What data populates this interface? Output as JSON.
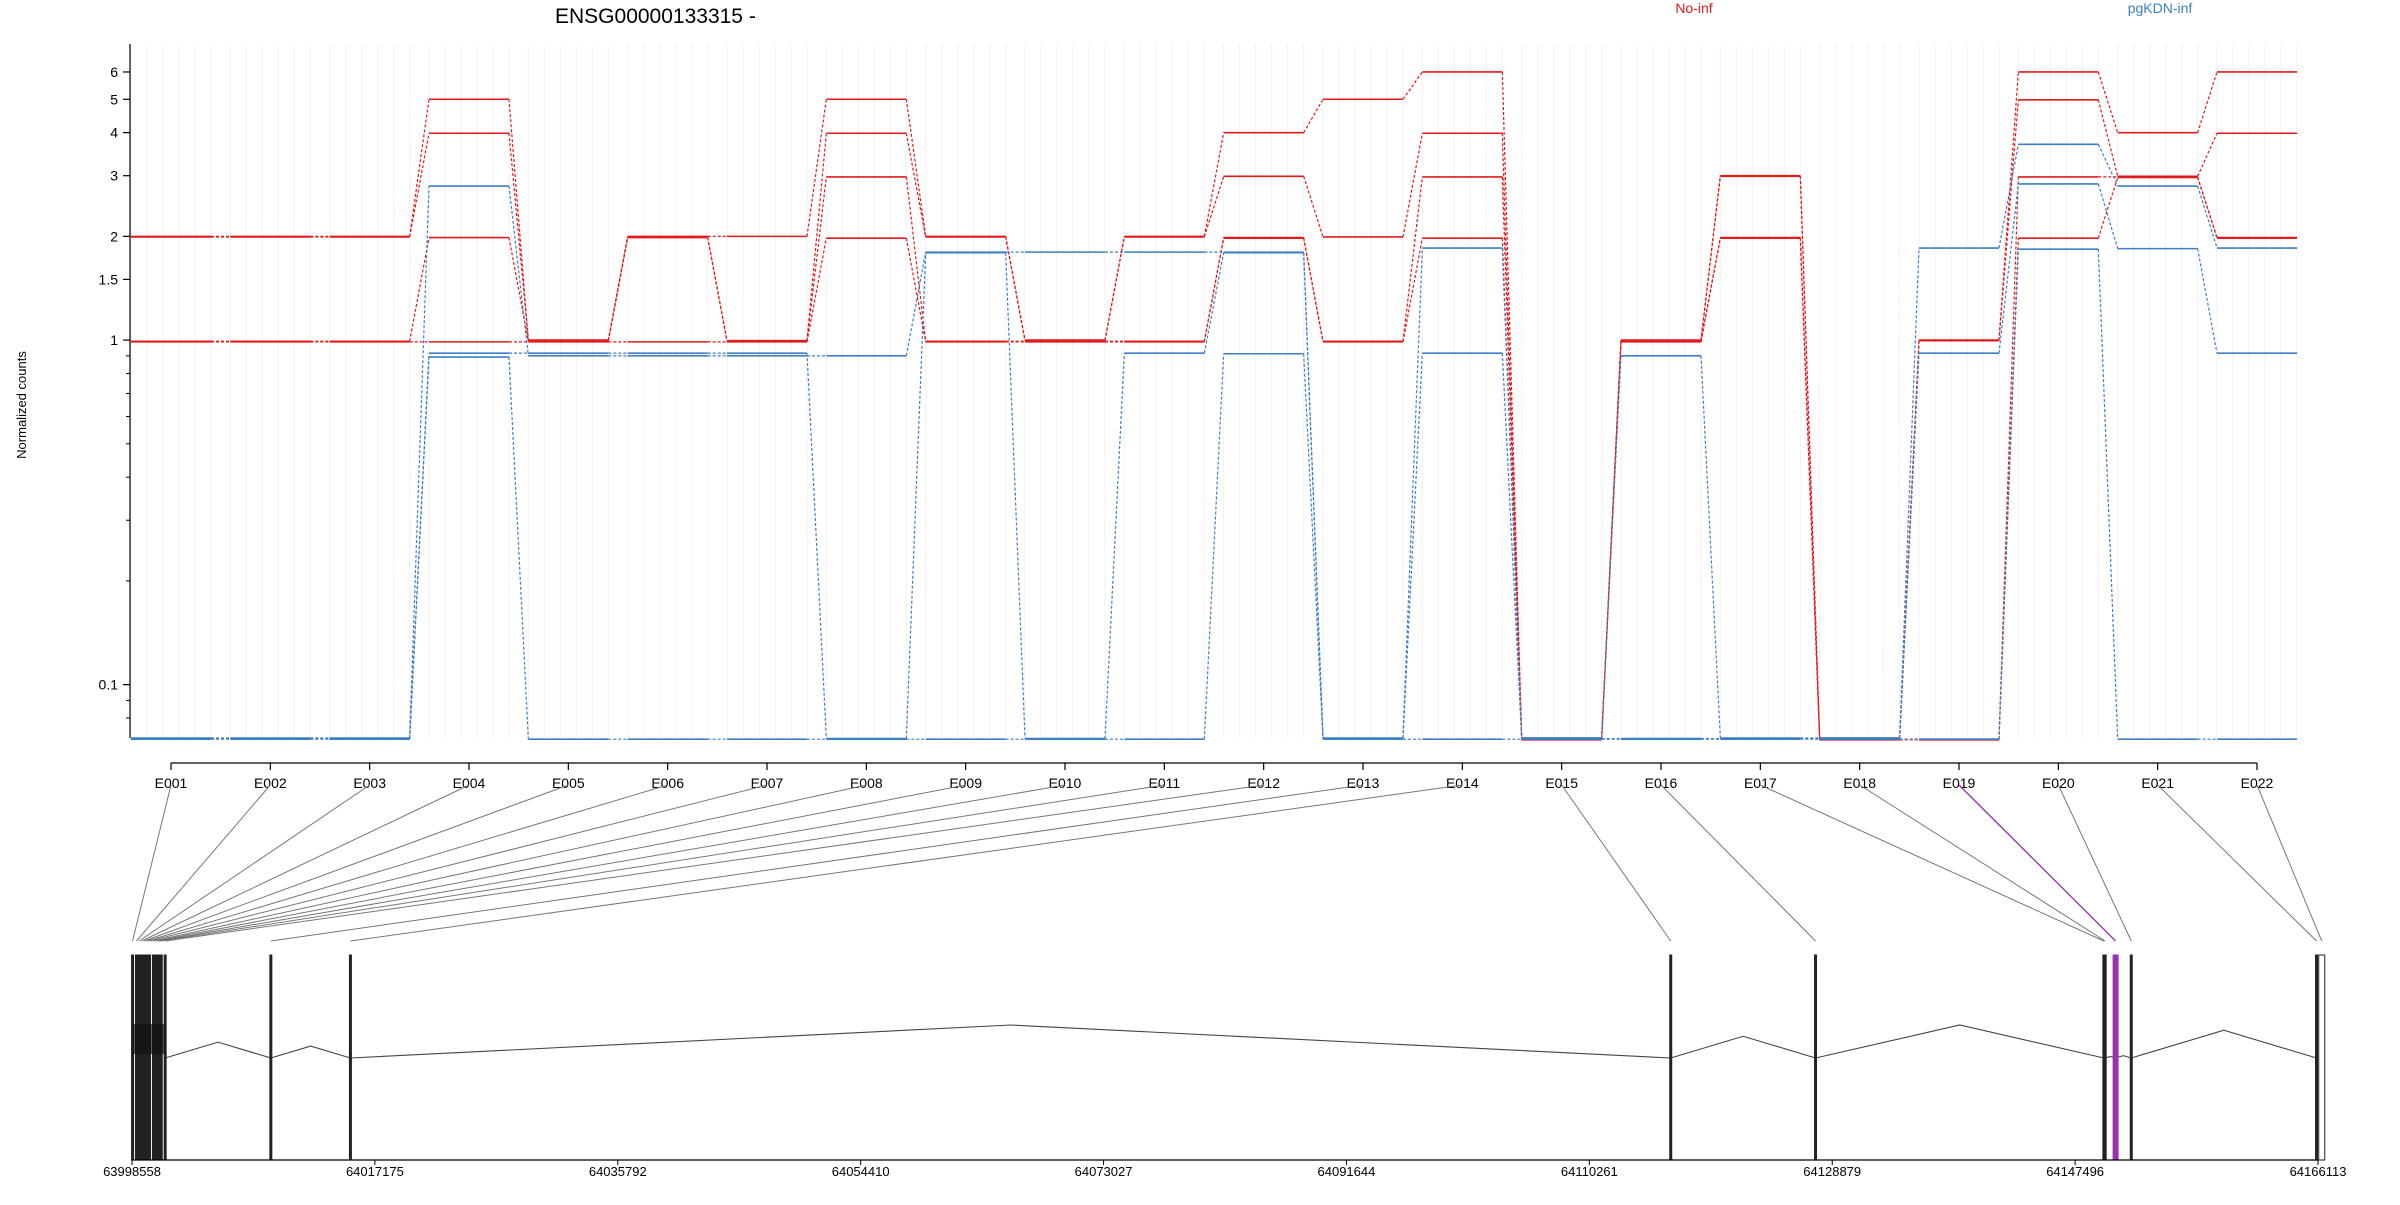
{
  "chart_data": {
    "type": "line",
    "title": "ENSG00000133315 -",
    "ylabel": "Normalized counts",
    "xlabel": "",
    "y_scale": "log",
    "y_ticks": [
      0.1,
      1,
      1.5,
      2,
      3,
      4,
      5,
      6
    ],
    "y_tick_labels": [
      "0.1",
      "1",
      "1.5",
      "2",
      "3",
      "4",
      "5",
      "6"
    ],
    "ylim": [
      0.07,
      6.5
    ],
    "grid": true,
    "legend": [
      {
        "name": "No-inf",
        "color": "#e31a1c"
      },
      {
        "name": "pgKDN-inf",
        "color": "#3d7fc6"
      }
    ],
    "categories": [
      "E001",
      "E002",
      "E003",
      "E004",
      "E005",
      "E006",
      "E007",
      "E008",
      "E009",
      "E010",
      "E011",
      "E012",
      "E013",
      "E014",
      "E015",
      "E016",
      "E017",
      "E018",
      "E019",
      "E020",
      "E021",
      "E022"
    ],
    "series": [
      {
        "group": "No-inf",
        "values": [
          2,
          2,
          2,
          5,
          1,
          2,
          2,
          5,
          2,
          1,
          2,
          4,
          5,
          6,
          0.07,
          1,
          3,
          0.07,
          1,
          6,
          4,
          6
        ]
      },
      {
        "group": "No-inf",
        "values": [
          2,
          2,
          2,
          4,
          1,
          2,
          1,
          4,
          2,
          1,
          2,
          3,
          2,
          4,
          0.07,
          1,
          3,
          0.07,
          1,
          5,
          3,
          4
        ]
      },
      {
        "group": "No-inf",
        "values": [
          1,
          1,
          1,
          2,
          1,
          2,
          1,
          3,
          1,
          1,
          1,
          2,
          1,
          3,
          0.07,
          1,
          2,
          0.07,
          0.07,
          3,
          3,
          2
        ]
      },
      {
        "group": "No-inf",
        "values": [
          1,
          1,
          1,
          1,
          1,
          1,
          1,
          2,
          1,
          1,
          1,
          2,
          1,
          2,
          0.07,
          1,
          2,
          0.07,
          0.07,
          2,
          3,
          2
        ]
      },
      {
        "group": "pgKDN-inf",
        "values": [
          0.07,
          0.07,
          0.07,
          2.8,
          0.9,
          0.9,
          0.9,
          0.9,
          1.8,
          1.8,
          1.8,
          1.8,
          0.07,
          1.85,
          0.07,
          0.9,
          0.07,
          0.07,
          1.85,
          3.7,
          2.8,
          1.85
        ]
      },
      {
        "group": "pgKDN-inf",
        "values": [
          0.07,
          0.07,
          0.07,
          0.92,
          0.92,
          0.92,
          0.92,
          0.07,
          1.8,
          0.07,
          0.92,
          1.8,
          0.07,
          0.92,
          0.07,
          0.07,
          0.07,
          0.07,
          0.92,
          2.85,
          1.85,
          0.92
        ]
      },
      {
        "group": "pgKDN-inf",
        "values": [
          0.07,
          0.07,
          0.07,
          0.9,
          0.07,
          0.07,
          0.07,
          0.07,
          0.07,
          0.07,
          0.07,
          0.92,
          0.07,
          0.07,
          0.07,
          0.07,
          0.07,
          0.07,
          0.07,
          1.85,
          0.07,
          0.07
        ]
      }
    ],
    "genomic_axis": {
      "ticks": [
        63998558,
        64017175,
        64035792,
        64054410,
        64073027,
        64091644,
        64110261,
        64128879,
        64147496,
        64166113
      ],
      "tick_labels": [
        "63998558",
        "64017175",
        "64035792",
        "64054410",
        "64073027",
        "64091644",
        "64110261",
        "64128879",
        "64147496",
        "64166113"
      ],
      "range": [
        63998558,
        64166113
      ]
    },
    "exon_positions": [
      63998600,
      63998900,
      63999100,
      63999300,
      63999500,
      63999700,
      63999900,
      64000200,
      64000400,
      64000600,
      64000800,
      64001100,
      64009200,
      64015300,
      64116500,
      64127600,
      64149700,
      64149800,
      64150600,
      64151800,
      64166000,
      64166400
    ],
    "highlighted_exon": {
      "name": "E019",
      "color": "#9b30b0"
    }
  }
}
